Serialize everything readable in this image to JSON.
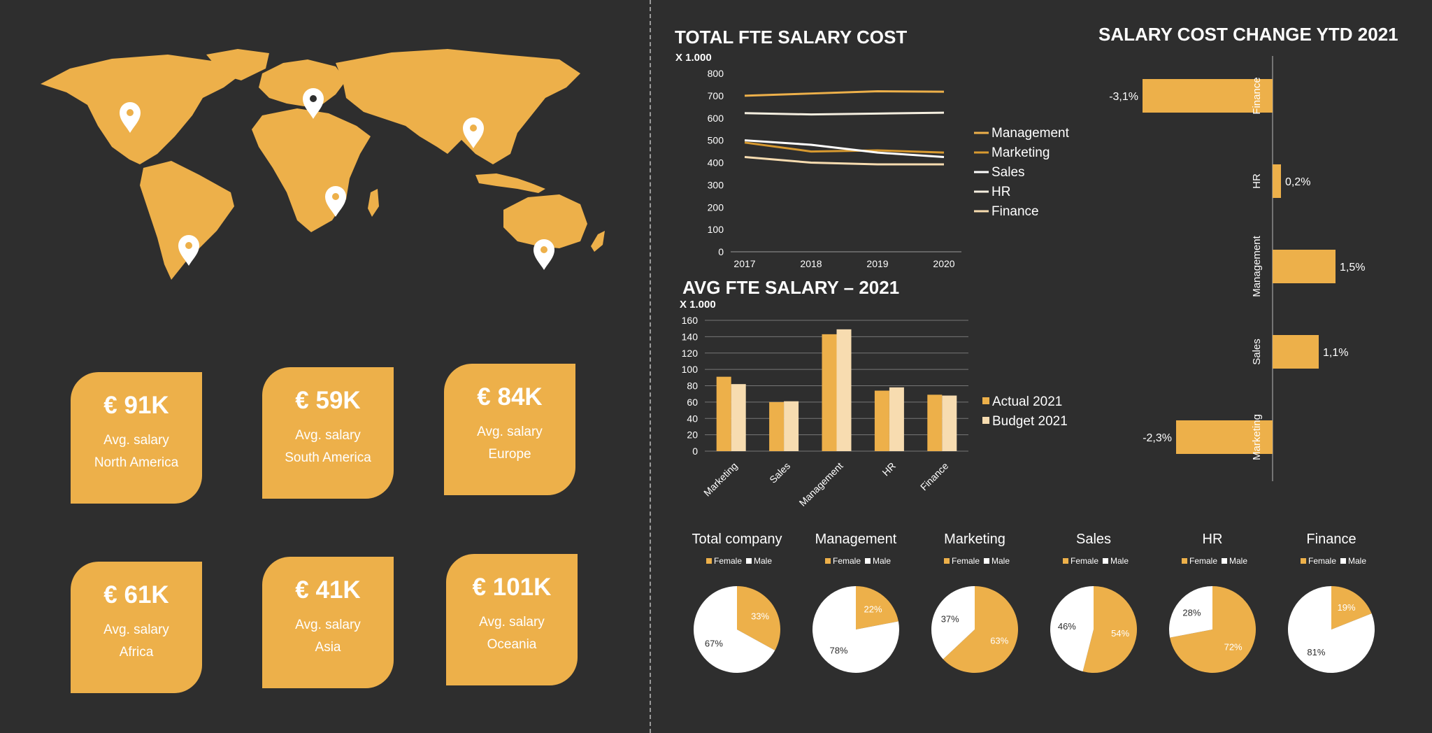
{
  "colors": {
    "background": "#2e2e2e",
    "accent": "#edb04a",
    "accent_dark": "#d89a30",
    "cream": "#f7dcb0",
    "light": "#f5efe0",
    "white": "#ffffff"
  },
  "map": {
    "markers": [
      "north-america",
      "south-america",
      "europe",
      "africa",
      "asia",
      "oceania"
    ]
  },
  "cards": [
    {
      "value": "€ 91K",
      "label": "Avg. salary",
      "region": "North America"
    },
    {
      "value": "€ 59K",
      "label": "Avg. salary",
      "region": "South America"
    },
    {
      "value": "€ 84K",
      "label": "Avg. salary",
      "region": "Europe"
    },
    {
      "value": "€ 61K",
      "label": "Avg. salary",
      "region": "Africa"
    },
    {
      "value": "€ 41K",
      "label": "Avg. salary",
      "region": "Asia"
    },
    {
      "value": "€ 101K",
      "label": "Avg. salary",
      "region": "Oceania"
    }
  ],
  "chart_data": [
    {
      "type": "line",
      "title": "TOTAL FTE SALARY COST",
      "unit_label": "X 1.000",
      "x": [
        "2017",
        "2018",
        "2019",
        "2020"
      ],
      "ylim": [
        0,
        800
      ],
      "yticks": [
        0,
        100,
        200,
        300,
        400,
        500,
        600,
        700,
        800
      ],
      "legend_position": "right",
      "series": [
        {
          "name": "Management",
          "values": [
            700,
            710,
            720,
            718
          ],
          "color": "#edb04a"
        },
        {
          "name": "Marketing",
          "values": [
            490,
            450,
            455,
            445
          ],
          "color": "#d89a30"
        },
        {
          "name": "Sales",
          "values": [
            500,
            480,
            445,
            425
          ],
          "color": "#ffffff"
        },
        {
          "name": "HR",
          "values": [
            622,
            616,
            620,
            624
          ],
          "color": "#f5efe0"
        },
        {
          "name": "Finance",
          "values": [
            425,
            400,
            392,
            392
          ],
          "color": "#f7dcb0"
        }
      ]
    },
    {
      "type": "bar",
      "title": "AVG FTE SALARY – 2021",
      "unit_label": "X 1.000",
      "categories": [
        "Marketing",
        "Sales",
        "Management",
        "HR",
        "Finance"
      ],
      "ylim": [
        0,
        160
      ],
      "yticks": [
        0,
        20,
        40,
        60,
        80,
        100,
        120,
        140,
        160
      ],
      "grid": true,
      "legend_position": "right",
      "series": [
        {
          "name": "Actual 2021",
          "values": [
            91,
            60,
            143,
            74,
            69
          ],
          "color": "#edb04a"
        },
        {
          "name": "Budget 2021",
          "values": [
            82,
            61,
            149,
            78,
            68
          ],
          "color": "#f7dcb0"
        }
      ]
    },
    {
      "type": "bar",
      "orientation": "horizontal",
      "title": "SALARY COST CHANGE YTD 2021",
      "categories": [
        "Finance",
        "HR",
        "Management",
        "Sales",
        "Marketing"
      ],
      "values": [
        -3.1,
        0.2,
        1.5,
        1.1,
        -2.3
      ],
      "value_labels": [
        "-3,1%",
        "0,2%",
        "1,5%",
        "1,1%",
        "-2,3%"
      ]
    },
    {
      "type": "pie",
      "legend": [
        "Female",
        "Male"
      ],
      "colors": [
        "#edb04a",
        "#ffffff"
      ],
      "pies": [
        {
          "title": "Total company",
          "values": [
            33,
            67
          ],
          "labels": [
            "33%",
            "67%"
          ]
        },
        {
          "title": "Management",
          "values": [
            22,
            78
          ],
          "labels": [
            "22%",
            "78%"
          ]
        },
        {
          "title": "Marketing",
          "values": [
            63,
            37
          ],
          "labels": [
            "63%",
            "37%"
          ]
        },
        {
          "title": "Sales",
          "values": [
            54,
            46
          ],
          "labels": [
            "54%",
            "46%"
          ]
        },
        {
          "title": "HR",
          "values": [
            72,
            28
          ],
          "labels": [
            "72%",
            "28%"
          ]
        },
        {
          "title": "Finance",
          "values": [
            19,
            81
          ],
          "labels": [
            "19%",
            "81%"
          ]
        }
      ]
    }
  ]
}
